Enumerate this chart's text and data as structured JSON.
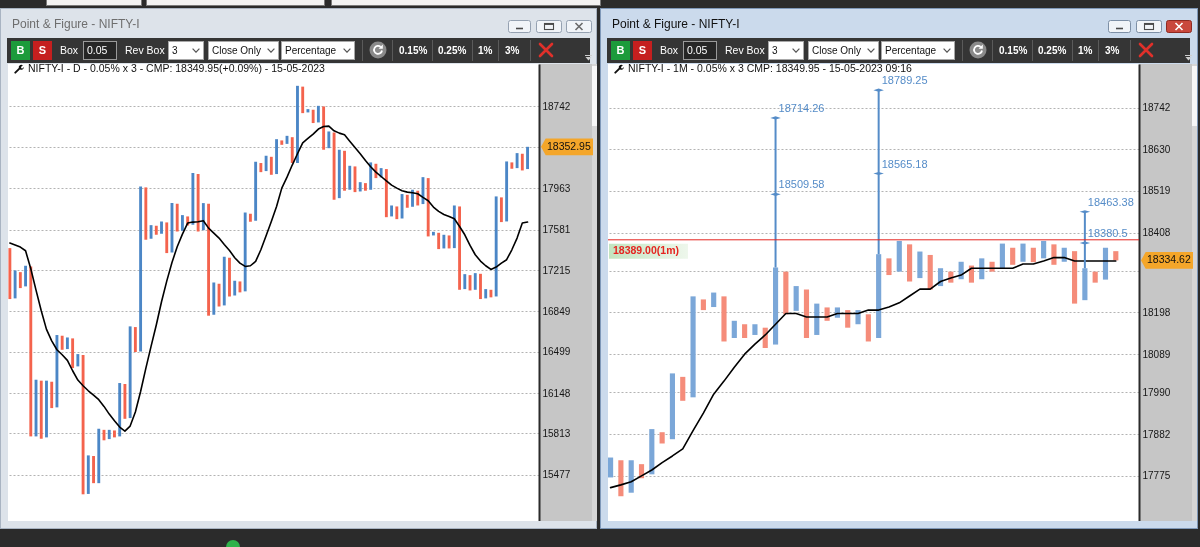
{
  "chart_data": [
    {
      "type": "bar",
      "title": "Point & Figure - NIFTY-I",
      "subtitle": "NIFTY-I - D - 0.05% x 3 - CMP: 18349.95(+0.09%) - 15-05-2023",
      "categories": [
        null,
        null,
        null,
        null,
        null,
        null,
        null,
        null,
        null,
        null,
        null,
        null,
        null,
        null,
        null,
        null,
        null,
        null,
        null,
        null,
        null,
        null,
        null,
        null,
        null,
        null,
        null,
        null,
        null,
        null,
        null,
        null,
        null,
        null,
        null,
        null,
        null,
        null,
        null,
        null,
        null,
        null,
        null,
        null,
        null,
        null,
        null,
        null,
        null,
        null,
        null,
        null,
        null,
        null,
        null,
        null,
        null,
        null,
        null,
        null,
        null,
        null,
        null,
        null,
        null,
        null,
        null,
        null,
        null,
        null,
        null,
        null,
        null,
        null,
        null,
        null,
        null,
        null,
        null,
        null,
        null,
        null,
        null,
        null,
        null,
        null,
        null,
        null,
        null,
        null,
        null,
        null,
        null,
        null,
        null,
        null,
        null,
        null,
        null,
        null
      ],
      "series": [
        {
          "type": "bar",
          "base": [
            17412,
            16963,
            17196,
            17069,
            17247,
            15789,
            16253,
            15781,
            16244,
            16029,
            16637,
            16522,
            16614,
            16374,
            16471,
            15324,
            15629,
            15410,
            15843,
            15767,
            15838,
            15789,
            16225,
            15940,
            16712,
            16502,
            17970,
            17497,
            17615,
            17542,
            17646,
            17373,
            17818,
            17569,
            17701,
            17624,
            18095,
            17575,
            17818,
            16820,
            17093,
            16901,
            17325,
            16989,
            17113,
            17025,
            17725,
            17661,
            18199,
            18123,
            18258,
            18095,
            18414,
            18381,
            18445,
            18199,
            18936,
            18684,
            18710,
            18587,
            18742,
            18340,
            18490,
            17870,
            18315,
            17948,
            18167,
            17932,
            18010,
            17948,
            18192,
            18063,
            18142,
            17701,
            17793,
            17682,
            17901,
            17790,
            17939,
            17815,
            18057,
            17527,
            17551,
            17409,
            17527,
            17412,
            17793,
            17045,
            17169,
            17039,
            17181,
            16963,
            17039,
            16980,
            17877,
            17655,
            18205,
            18151,
            18287,
            18142
          ],
          "values": [
            -455,
            248,
            -142,
            184,
            -1458,
            472,
            -483,
            472,
            -221,
            614,
            -121,
            100,
            -254,
            105,
            -1150,
            310,
            -219,
            442,
            -86,
            76,
            -57,
            444,
            -291,
            778,
            -215,
            1477,
            -482,
            124,
            -82,
            113,
            -279,
            451,
            -255,
            144,
            -83,
            480,
            -532,
            249,
            -1007,
            284,
            -201,
            433,
            -345,
            130,
            -97,
            712,
            -73,
            550,
            -86,
            145,
            -170,
            331,
            -42,
            77,
            -246,
            745,
            -259,
            32,
            -129,
            161,
            -417,
            160,
            -635,
            455,
            -376,
            225,
            -241,
            87,
            -71,
            257,
            -135,
            88,
            -448,
            101,
            -117,
            226,
            -120,
            158,
            -137,
            251,
            -539,
            33,
            -148,
            124,
            -118,
            390,
            -754,
            133,
            -136,
            148,
            -224,
            82,
            -67,
            906,
            -228,
            559,
            -60,
            142,
            -158,
            210.95
          ],
          "colors": [
            "#f4634d",
            "#4b86c6",
            "#f4634d",
            "#4b86c6",
            "#f4634d",
            "#4b86c6",
            "#f4634d",
            "#4b86c6",
            "#f4634d",
            "#4b86c6",
            "#f4634d",
            "#4b86c6",
            "#f4634d",
            "#4b86c6",
            "#f4634d",
            "#4b86c6",
            "#f4634d",
            "#4b86c6",
            "#f4634d",
            "#4b86c6",
            "#f4634d",
            "#4b86c6",
            "#f4634d",
            "#4b86c6",
            "#f4634d",
            "#4b86c6",
            "#f4634d",
            "#4b86c6",
            "#f4634d",
            "#4b86c6",
            "#f4634d",
            "#4b86c6",
            "#f4634d",
            "#4b86c6",
            "#f4634d",
            "#4b86c6",
            "#f4634d",
            "#4b86c6",
            "#f4634d",
            "#4b86c6",
            "#f4634d",
            "#4b86c6",
            "#f4634d",
            "#4b86c6",
            "#f4634d",
            "#4b86c6",
            "#f4634d",
            "#4b86c6",
            "#f4634d",
            "#4b86c6",
            "#f4634d",
            "#4b86c6",
            "#f4634d",
            "#4b86c6",
            "#f4634d",
            "#4b86c6",
            "#f4634d",
            "#4b86c6",
            "#f4634d",
            "#4b86c6",
            "#f4634d",
            "#4b86c6",
            "#f4634d",
            "#4b86c6",
            "#f4634d",
            "#4b86c6",
            "#f4634d",
            "#4b86c6",
            "#f4634d",
            "#4b86c6",
            "#f4634d",
            "#4b86c6",
            "#f4634d",
            "#4b86c6",
            "#f4634d",
            "#4b86c6",
            "#f4634d",
            "#4b86c6",
            "#f4634d",
            "#4b86c6",
            "#f4634d",
            "#4b86c6",
            "#f4634d",
            "#4b86c6",
            "#f4634d",
            "#4b86c6",
            "#f4634d",
            "#4b86c6",
            "#f4634d",
            "#4b86c6",
            "#f4634d",
            "#4b86c6",
            "#f4634d",
            "#4b86c6",
            "#f4634d",
            "#4b86c6",
            "#f4634d",
            "#4b86c6",
            "#f4634d",
            "#4b86c6"
          ]
        },
        {
          "type": "line",
          "color": "#000000",
          "values": [
            17458,
            17441,
            17421,
            17388,
            17226,
            17036,
            16854,
            16692,
            16593,
            16516,
            16473,
            16425,
            16337,
            16258,
            16210,
            16168,
            16132,
            16093,
            16037,
            15973,
            15918,
            15866,
            15833,
            15874,
            15990,
            16162,
            16357,
            16545,
            16730,
            16933,
            17116,
            17283,
            17424,
            17539,
            17640,
            17649,
            17652,
            17662,
            17594,
            17548,
            17503,
            17445,
            17391,
            17325,
            17277,
            17247,
            17253,
            17292,
            17397,
            17524,
            17655,
            17793,
            17963,
            18066,
            18180,
            18287,
            18391,
            18433,
            18474,
            18523,
            18548,
            18551,
            18506,
            18484,
            18468,
            18407,
            18347,
            18287,
            18224,
            18164,
            18113,
            18072,
            18032,
            17991,
            17963,
            17939,
            17926,
            17920,
            17911,
            17877,
            17846,
            17787,
            17747,
            17719,
            17701,
            17679,
            17609,
            17533,
            17436,
            17352,
            17295,
            17253,
            17220,
            17241,
            17277,
            17307,
            17397,
            17503,
            17640,
            17649
          ]
        }
      ],
      "ylim": [
        15110,
        19160
      ],
      "yticks": [
        15477,
        15813,
        16148,
        16499,
        16849,
        17215,
        17581,
        17963,
        {
          "value": 18350,
          "label": null
        },
        18742
      ],
      "log": true,
      "grid": "y",
      "tick_labels": "y",
      "annotations": [
        "18352.95",
        "B",
        "S",
        "Box",
        "0.05",
        "Rev Box",
        "3",
        "Close Only",
        "Percentage",
        "0.15%",
        "0.25%",
        "1%",
        "3%"
      ]
    },
    {
      "type": "bar",
      "title": "Point & Figure - NIFTY-I",
      "subtitle": "NIFTY-I - 1M - 0.05% x 3 CMP: 18349.95 - 15-05-2023 09:16",
      "categories": [
        null,
        null,
        null,
        null,
        null,
        null,
        null,
        null,
        null,
        null,
        null,
        null,
        null,
        null,
        null,
        null,
        null,
        null,
        null,
        null,
        null,
        null,
        null,
        null,
        null,
        null,
        null,
        null,
        null,
        null,
        null,
        null,
        null,
        null,
        null,
        null,
        null,
        null,
        null,
        null,
        null,
        null,
        null,
        null,
        null,
        null,
        null,
        null,
        null,
        null
      ],
      "series": [
        {
          "type": "bar",
          "base": [
            17771,
            17815,
            17732,
            17805,
            17779,
            17887,
            17869,
            18030,
            17977,
            18232,
            18212,
            18240,
            18131,
            18167,
            18139,
            18158,
            18114,
            18305,
            18202,
            18258,
            18139,
            18211,
            18184,
            18204,
            18167,
            18193,
            18131,
            18340,
            18305,
            18377,
            18288,
            18349,
            18267,
            18305,
            18285,
            18321,
            18285,
            18331,
            18312,
            18368,
            18331,
            18368,
            18340,
            18377,
            18331,
            18359,
            18230,
            18305,
            18284,
            18359
          ],
          "values": [
            51,
            -92,
            83,
            -36,
            116,
            -29,
            170,
            -62,
            263,
            -28,
            38,
            -118,
            45,
            -36,
            28,
            -53,
            202,
            -112,
            65,
            -127,
            82,
            -35,
            27,
            -46,
            37,
            -71,
            220,
            -44,
            81,
            -98,
            70,
            -91,
            47,
            -29,
            46,
            -45,
            55,
            -26,
            67,
            -45,
            48,
            -38,
            46,
            -54,
            37,
            -138,
            84,
            -29,
            84,
            -24.38
          ],
          "colors": [
            "#7ba7d8",
            "#f58c7a",
            "#7ba7d8",
            "#f58c7a",
            "#7ba7d8",
            "#f58c7a",
            "#7ba7d8",
            "#f58c7a",
            "#7ba7d8",
            "#f58c7a",
            "#7ba7d8",
            "#f58c7a",
            "#7ba7d8",
            "#f58c7a",
            "#7ba7d8",
            "#f58c7a",
            "#7ba7d8",
            "#f58c7a",
            "#7ba7d8",
            "#f58c7a",
            "#7ba7d8",
            "#f58c7a",
            "#7ba7d8",
            "#f58c7a",
            "#7ba7d8",
            "#f58c7a",
            "#7ba7d8",
            "#f58c7a",
            "#7ba7d8",
            "#f58c7a",
            "#7ba7d8",
            "#f58c7a",
            "#7ba7d8",
            "#f58c7a",
            "#7ba7d8",
            "#f58c7a",
            "#7ba7d8",
            "#f58c7a",
            "#7ba7d8",
            "#f58c7a",
            "#7ba7d8",
            "#f58c7a",
            "#7ba7d8",
            "#f58c7a",
            "#7ba7d8",
            "#f58c7a",
            "#7ba7d8",
            "#f58c7a",
            "#7ba7d8",
            "#f58c7a"
          ]
        },
        {
          "type": "line",
          "color": "#000000",
          "values": [
            17745,
            17752,
            17760,
            17775,
            17790,
            17809,
            17826,
            17844,
            17891,
            17936,
            17985,
            18019,
            18055,
            18089,
            18115,
            18139,
            18167,
            18195,
            18195,
            18186,
            18186,
            18186,
            18195,
            18195,
            18195,
            18204,
            18204,
            18212,
            18223,
            18241,
            18259,
            18259,
            18279,
            18288,
            18296,
            18314,
            18314,
            18314,
            18314,
            18314,
            18325,
            18325,
            18333,
            18342,
            18342,
            18333,
            18333,
            18333,
            18333,
            18333
          ]
        },
        {
          "type": "scatter",
          "color": "#558cc8",
          "marker": "diamond",
          "values": [
            null,
            null,
            null,
            null,
            null,
            null,
            null,
            null,
            null,
            null,
            null,
            null,
            null,
            null,
            null,
            null,
            18509.58,
            null,
            null,
            null,
            null,
            null,
            null,
            null,
            null,
            null,
            18565.18,
            null,
            null,
            null,
            null,
            null,
            null,
            null,
            null,
            null,
            null,
            null,
            null,
            null,
            null,
            null,
            null,
            null,
            null,
            null,
            18380.5,
            null,
            null,
            null
          ],
          "errors": [
            null,
            null,
            null,
            null,
            null,
            null,
            null,
            null,
            null,
            null,
            null,
            null,
            null,
            null,
            null,
            null,
            [
              18316,
              18714.26
            ],
            null,
            null,
            null,
            null,
            null,
            null,
            null,
            null,
            null,
            [
              18351,
              18789.25
            ],
            null,
            null,
            null,
            null,
            null,
            null,
            null,
            null,
            null,
            null,
            null,
            null,
            null,
            null,
            null,
            null,
            null,
            null,
            null,
            [
              18314,
              18463.38
            ],
            null,
            null,
            null
          ],
          "value_labels": [
            null,
            null,
            null,
            null,
            null,
            null,
            null,
            null,
            null,
            null,
            null,
            null,
            null,
            null,
            null,
            null,
            "18509.58",
            null,
            null,
            null,
            null,
            null,
            null,
            null,
            null,
            null,
            "18565.18",
            null,
            null,
            null,
            null,
            null,
            null,
            null,
            null,
            null,
            null,
            null,
            null,
            null,
            null,
            null,
            null,
            null,
            null,
            null,
            "18380.5",
            null,
            null,
            null
          ]
        },
        {
          "type": "scatter",
          "color": "#558cc8",
          "marker": "diamond",
          "values": [
            null,
            null,
            null,
            null,
            null,
            null,
            null,
            null,
            null,
            null,
            null,
            null,
            null,
            null,
            null,
            null,
            18714.26,
            null,
            null,
            null,
            null,
            null,
            null,
            null,
            null,
            null,
            18789.25,
            null,
            null,
            null,
            null,
            null,
            null,
            null,
            null,
            null,
            null,
            null,
            null,
            null,
            null,
            null,
            null,
            null,
            null,
            null,
            18463.38,
            null,
            null,
            null
          ],
          "value_labels": [
            null,
            null,
            null,
            null,
            null,
            null,
            null,
            null,
            null,
            null,
            null,
            null,
            null,
            null,
            null,
            null,
            "18714.26",
            null,
            null,
            null,
            null,
            null,
            null,
            null,
            null,
            null,
            "18789.25",
            null,
            null,
            null,
            null,
            null,
            null,
            null,
            null,
            null,
            null,
            null,
            null,
            null,
            null,
            null,
            null,
            null,
            null,
            null,
            "18463.38",
            null,
            null,
            null
          ]
        }
      ],
      "ylim": [
        17660,
        18860
      ],
      "yticks": [
        17775,
        17882,
        17990,
        18089,
        18198,
        {
          "value": 18307,
          "label": null
        },
        18408,
        18519,
        18630,
        18742
      ],
      "log": true,
      "grid": "y",
      "tick_labels": "y",
      "ref_lines": [
        {
          "axis": "y",
          "value": 18389,
          "label": "18389.00(1m)",
          "color": "#e52521"
        }
      ],
      "annotations": [
        "18334.62",
        "B",
        "S",
        "Box",
        "0.05",
        "Rev Box",
        "3",
        "Close Only",
        "Percentage",
        "0.15%",
        "0.25%",
        "1%",
        "3%"
      ]
    }
  ]
}
